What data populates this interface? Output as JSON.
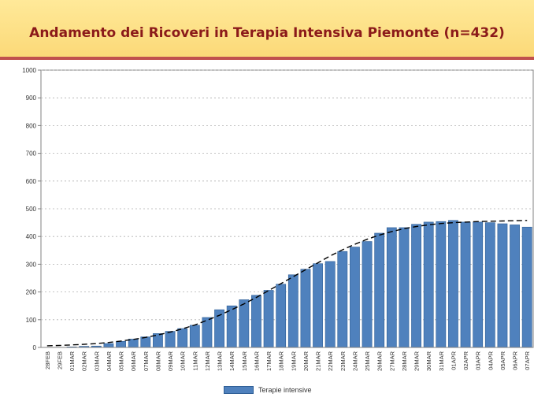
{
  "header": {
    "title": "Andamento dei Ricoveri in Terapia Intensiva Piemonte (n=432)"
  },
  "colors": {
    "bar": "#4f81bd",
    "bar_border": "#2f5f96",
    "trend": "#000000",
    "title": "#8b1a1a"
  },
  "chart_data": {
    "type": "bar",
    "title": "Andamento dei Ricoveri in Terapia Intensiva Piemonte (n=432)",
    "xlabel": "",
    "ylabel": "",
    "ylim": [
      0,
      1000
    ],
    "yticks": [
      0,
      100,
      200,
      300,
      400,
      500,
      600,
      700,
      800,
      900,
      1000
    ],
    "grid": "horizontal-dashed",
    "legend_position": "bottom",
    "categories": [
      "28FEB",
      "29FEB",
      "01MAR",
      "02MAR",
      "03MAR",
      "04MAR",
      "05MAR",
      "06MAR",
      "07MAR",
      "08MAR",
      "09MAR",
      "10MAR",
      "11MAR",
      "12MAR",
      "13MAR",
      "14MAR",
      "15MAR",
      "16MAR",
      "17MAR",
      "18MAR",
      "19MAR",
      "20MAR",
      "21MAR",
      "22MAR",
      "23MAR",
      "24MAR",
      "25MAR",
      "26MAR",
      "27MAR",
      "28MAR",
      "29MAR",
      "30MAR",
      "31MAR",
      "01APR",
      "02APR",
      "03APR",
      "04APR",
      "05APR",
      "06APR",
      "07APR"
    ],
    "series": [
      {
        "name": "Terapie intensive",
        "values": [
          0,
          0,
          2,
          4,
          5,
          14,
          22,
          30,
          38,
          50,
          58,
          68,
          80,
          108,
          136,
          150,
          172,
          188,
          206,
          228,
          262,
          282,
          302,
          310,
          346,
          362,
          382,
          412,
          432,
          432,
          444,
          452,
          454,
          458,
          452,
          452,
          450,
          446,
          442,
          434
        ]
      }
    ],
    "trendline": {
      "style": "dashed",
      "values": [
        6,
        7,
        9,
        11,
        14,
        18,
        23,
        29,
        36,
        45,
        55,
        67,
        81,
        98,
        116,
        136,
        157,
        180,
        205,
        230,
        255,
        280,
        305,
        330,
        352,
        372,
        390,
        405,
        418,
        428,
        436,
        442,
        447,
        450,
        452,
        454,
        455,
        456,
        457,
        458
      ]
    }
  }
}
